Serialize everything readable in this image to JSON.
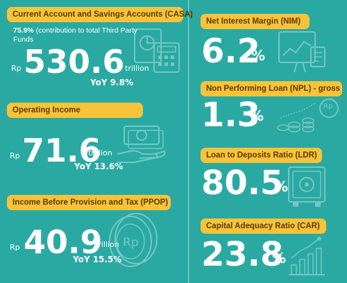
{
  "casa": {
    "title": "Current Account and Savings Accounts (CASA)",
    "note_pct": "75.9%",
    "note_text": "(contribution to total Third Party Funds",
    "currency": "Rp",
    "value": "530.6",
    "unit": "trillion",
    "yoy": "YoY 9.8%"
  },
  "operating_income": {
    "title": "Operating Income",
    "currency": "Rp",
    "value": "71.6",
    "unit": "trillion",
    "yoy": "YoY 13.6%"
  },
  "ppop": {
    "title": "Income Before Provision and Tax (PPOP)",
    "currency": "Rp",
    "value": "40.9",
    "unit": "trillion",
    "yoy": "YoY 15.5%",
    "coin_text": "Rp"
  },
  "nim": {
    "title": "Net Interest Margin (NIM)",
    "value": "6.2",
    "suffix": "%"
  },
  "npl": {
    "title": "Non Performing Loan (NPL) - gross",
    "value": "1.3",
    "suffix": "%",
    "coin_text": "Rp"
  },
  "ldr": {
    "title": "Loan to Deposits Ratio (LDR)",
    "value": "80.5",
    "suffix": "%"
  },
  "car": {
    "title": "Capital Adequacy Ratio (CAR)",
    "value": "23.8",
    "suffix": "%"
  },
  "colors": {
    "background": "#2aa9a3",
    "pill": "#f7c33a",
    "pill_text": "#5a3a00",
    "text": "#ffffff"
  },
  "icons": [
    "calculator-document-icon",
    "money-hand-icon",
    "coin-stack-icon",
    "chart-report-icon",
    "coins-growth-icon",
    "safe-icon",
    "bar-chart-growth-icon"
  ]
}
